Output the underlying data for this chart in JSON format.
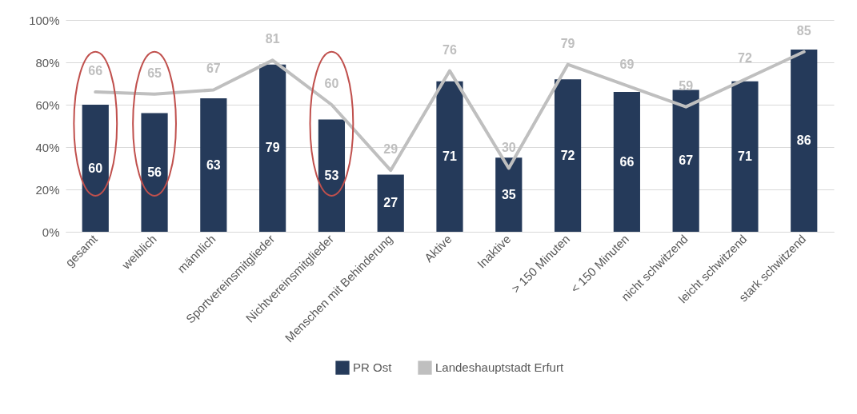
{
  "chart_data": {
    "type": "bar",
    "categories": [
      "gesamt",
      "weiblich",
      "männlich",
      "Sportvereinsmitglieder",
      "Nichtvereinsmitglieder",
      "Menschen mit Behinderung",
      "Aktive",
      "Inaktive",
      "> 150 Minuten",
      "< 150 Minuten",
      "nicht schwitzend",
      "leicht schwitzend",
      "stark schwitzend"
    ],
    "series": [
      {
        "name": "PR Ost",
        "color": "#253a5a",
        "values": [
          60,
          56,
          63,
          79,
          53,
          27,
          71,
          35,
          72,
          66,
          67,
          71,
          86
        ]
      },
      {
        "name": "Landeshauptstadt Erfurt",
        "type": "line",
        "color": "#bfbfbf",
        "values": [
          66,
          65,
          67,
          81,
          60,
          29,
          76,
          30,
          79,
          69,
          59,
          72,
          85
        ]
      }
    ],
    "ylim": [
      0,
      100
    ],
    "yticks": [
      {
        "value": 0,
        "label": "0%"
      },
      {
        "value": 20,
        "label": "20%"
      },
      {
        "value": 40,
        "label": "40%"
      },
      {
        "value": 60,
        "label": "60%"
      },
      {
        "value": 80,
        "label": "80%"
      },
      {
        "value": 100,
        "label": "100%"
      }
    ],
    "grid": "y",
    "legend": "bottom",
    "data_labels": true
  }
}
